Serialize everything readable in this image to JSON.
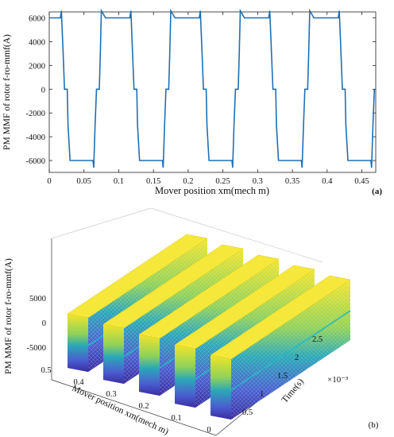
{
  "chart_data": [
    {
      "type": "line",
      "panel_label": "(a)",
      "xlabel": "Mover position xm(mech m)",
      "ylabel": "PM MMF of rotor f-ro-mmf(A)",
      "xlim": [
        0,
        0.47
      ],
      "ylim": [
        -7000,
        6500
      ],
      "x_ticks": [
        0,
        0.05,
        0.1,
        0.15,
        0.2,
        0.25,
        0.3,
        0.35,
        0.4,
        0.45
      ],
      "x_tick_labels": [
        "0",
        "0.05",
        "0.1",
        "0.15",
        "0.2",
        "0.25",
        "0.3",
        "0.35",
        "0.4",
        "0.45"
      ],
      "y_ticks": [
        -6000,
        -4000,
        -2000,
        0,
        2000,
        4000,
        6000
      ],
      "y_tick_labels": [
        "-6000",
        "-4000",
        "-2000",
        "0",
        "2000",
        "4000",
        "6000"
      ],
      "grid": false,
      "color": "#1f6fb5",
      "x": [
        0,
        0.01,
        0.016,
        0.0175,
        0.02,
        0.022,
        0.024,
        0.026,
        0.027,
        0.03,
        0.06,
        0.063,
        0.064,
        0.066,
        0.068,
        0.07,
        0.072,
        0.0735,
        0.075,
        0.081,
        0.09,
        0.11,
        0.116,
        0.1175,
        0.12,
        0.122,
        0.124,
        0.126,
        0.127,
        0.13,
        0.16,
        0.163,
        0.164,
        0.166,
        0.168,
        0.17,
        0.172,
        0.1735,
        0.175,
        0.181,
        0.19,
        0.21,
        0.216,
        0.2175,
        0.22,
        0.222,
        0.224,
        0.226,
        0.227,
        0.23,
        0.26,
        0.263,
        0.264,
        0.266,
        0.268,
        0.27,
        0.272,
        0.2735,
        0.275,
        0.281,
        0.29,
        0.31,
        0.316,
        0.3175,
        0.32,
        0.322,
        0.324,
        0.326,
        0.327,
        0.33,
        0.36,
        0.363,
        0.364,
        0.366,
        0.368,
        0.37,
        0.372,
        0.3735,
        0.375,
        0.381,
        0.39,
        0.41,
        0.416,
        0.4175,
        0.42,
        0.422,
        0.424,
        0.426,
        0.427,
        0.43,
        0.46,
        0.463,
        0.464,
        0.466,
        0.468
      ],
      "y": [
        6000,
        6000,
        6000,
        6600,
        3000,
        0,
        0,
        0,
        -3000,
        -6000,
        -6000,
        -6000,
        -6600,
        -3000,
        0,
        0,
        0,
        3000,
        6600,
        6000,
        6000,
        6000,
        6000,
        6600,
        3000,
        0,
        0,
        0,
        -3000,
        -6000,
        -6000,
        -6000,
        -6600,
        -3000,
        0,
        0,
        0,
        3000,
        6600,
        6000,
        6000,
        6000,
        6000,
        6600,
        3000,
        0,
        0,
        0,
        -3000,
        -6000,
        -6000,
        -6000,
        -6600,
        -3000,
        0,
        0,
        0,
        3000,
        6600,
        6000,
        6000,
        6000,
        6000,
        6600,
        3000,
        0,
        0,
        0,
        -3000,
        -6000,
        -6000,
        -6000,
        -6600,
        -3000,
        0,
        0,
        0,
        3000,
        6600,
        6000,
        6000,
        6000,
        6000,
        6600,
        3000,
        0,
        0,
        0,
        -3000,
        -6000,
        -6000,
        -6000,
        -6600,
        -3000,
        0
      ]
    },
    {
      "type": "surface",
      "panel_label": "(b)",
      "xlabel": "Mover position xm(mech m)",
      "ylabel": "Time(s)",
      "zlabel": "PM MMF of rotor f-ro-mmf(A)",
      "x_tick_labels": [
        "0.5",
        "0.4",
        "0.3",
        "0.2",
        "0.1",
        "0"
      ],
      "y_tick_labels": [
        "0.5",
        "1",
        "1.5",
        "2",
        "2.5"
      ],
      "y_multiplier": "×10⁻³",
      "z_tick_labels": [
        "5000",
        "0",
        "-5000"
      ],
      "xlim": [
        0,
        0.5
      ],
      "ylim": [
        0,
        0.0025
      ],
      "zlim": [
        -6000,
        6000
      ],
      "colormap": [
        "#3b2ca0",
        "#4a5fd0",
        "#2aa8b8",
        "#8fd15a",
        "#f2e52a"
      ],
      "ridge_count": 5
    }
  ]
}
